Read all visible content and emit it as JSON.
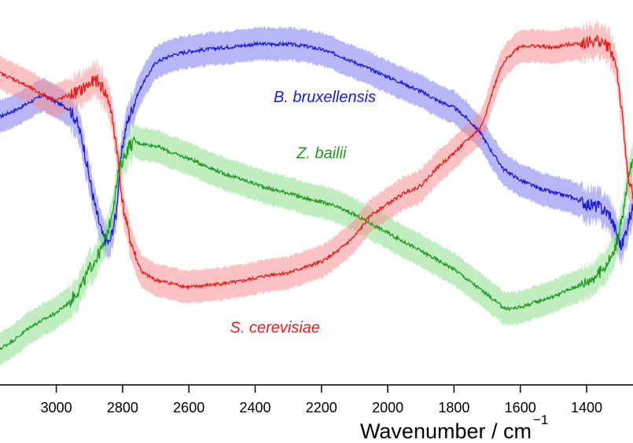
{
  "chart_data": {
    "type": "line",
    "title": "",
    "xlabel": "Wavenumber / cm",
    "xlabel_superscript": "−1",
    "ylabel": "",
    "xlim": [
      3170,
      1260
    ],
    "x_reversed": true,
    "ylim": [
      0,
      1
    ],
    "grid": false,
    "x_ticks": [
      3000,
      2800,
      2600,
      2400,
      2200,
      2000,
      1800,
      1600,
      1400
    ],
    "series": [
      {
        "name": "B. bruxellensis",
        "color": "#1a1adb",
        "band_color": "#7b7bf0",
        "label_at": [
          2190,
          0.74
        ],
        "points": [
          [
            3170,
            0.7
          ],
          [
            3120,
            0.72
          ],
          [
            3080,
            0.74
          ],
          [
            3040,
            0.76
          ],
          [
            3000,
            0.74
          ],
          [
            2960,
            0.72
          ],
          [
            2940,
            0.69
          ],
          [
            2920,
            0.63
          ],
          [
            2900,
            0.53
          ],
          [
            2880,
            0.44
          ],
          [
            2860,
            0.37
          ],
          [
            2840,
            0.35
          ],
          [
            2820,
            0.43
          ],
          [
            2810,
            0.54
          ],
          [
            2800,
            0.62
          ],
          [
            2790,
            0.67
          ],
          [
            2780,
            0.7
          ],
          [
            2760,
            0.75
          ],
          [
            2740,
            0.79
          ],
          [
            2700,
            0.85
          ],
          [
            2650,
            0.87
          ],
          [
            2600,
            0.88
          ],
          [
            2550,
            0.885
          ],
          [
            2500,
            0.89
          ],
          [
            2450,
            0.895
          ],
          [
            2400,
            0.9
          ],
          [
            2350,
            0.9
          ],
          [
            2300,
            0.9
          ],
          [
            2250,
            0.895
          ],
          [
            2200,
            0.885
          ],
          [
            2150,
            0.87
          ],
          [
            2100,
            0.85
          ],
          [
            2050,
            0.83
          ],
          [
            2000,
            0.81
          ],
          [
            1950,
            0.79
          ],
          [
            1900,
            0.77
          ],
          [
            1850,
            0.745
          ],
          [
            1800,
            0.725
          ],
          [
            1760,
            0.695
          ],
          [
            1720,
            0.655
          ],
          [
            1680,
            0.595
          ],
          [
            1650,
            0.555
          ],
          [
            1600,
            0.525
          ],
          [
            1550,
            0.505
          ],
          [
            1500,
            0.49
          ],
          [
            1450,
            0.48
          ],
          [
            1400,
            0.46
          ],
          [
            1360,
            0.45
          ],
          [
            1330,
            0.43
          ],
          [
            1310,
            0.38
          ],
          [
            1295,
            0.34
          ],
          [
            1280,
            0.39
          ],
          [
            1270,
            0.42
          ],
          [
            1260,
            0.45
          ]
        ]
      },
      {
        "name": "Z. bailii",
        "color": "#1a9a1a",
        "band_color": "#8ee08e",
        "label_at": [
          2200,
          0.585
        ],
        "points": [
          [
            3170,
            0.06
          ],
          [
            3120,
            0.09
          ],
          [
            3080,
            0.12
          ],
          [
            3040,
            0.14
          ],
          [
            3000,
            0.16
          ],
          [
            2960,
            0.19
          ],
          [
            2920,
            0.24
          ],
          [
            2900,
            0.28
          ],
          [
            2880,
            0.31
          ],
          [
            2860,
            0.34
          ],
          [
            2840,
            0.4
          ],
          [
            2820,
            0.5
          ],
          [
            2810,
            0.56
          ],
          [
            2800,
            0.58
          ],
          [
            2780,
            0.62
          ],
          [
            2760,
            0.63
          ],
          [
            2740,
            0.625
          ],
          [
            2700,
            0.62
          ],
          [
            2650,
            0.6
          ],
          [
            2600,
            0.585
          ],
          [
            2550,
            0.565
          ],
          [
            2500,
            0.545
          ],
          [
            2450,
            0.53
          ],
          [
            2400,
            0.515
          ],
          [
            2350,
            0.5
          ],
          [
            2300,
            0.49
          ],
          [
            2250,
            0.475
          ],
          [
            2200,
            0.465
          ],
          [
            2150,
            0.45
          ],
          [
            2100,
            0.43
          ],
          [
            2050,
            0.405
          ],
          [
            2000,
            0.38
          ],
          [
            1950,
            0.355
          ],
          [
            1900,
            0.33
          ],
          [
            1850,
            0.305
          ],
          [
            1800,
            0.28
          ],
          [
            1750,
            0.245
          ],
          [
            1700,
            0.21
          ],
          [
            1660,
            0.18
          ],
          [
            1640,
            0.17
          ],
          [
            1600,
            0.175
          ],
          [
            1550,
            0.19
          ],
          [
            1500,
            0.205
          ],
          [
            1450,
            0.225
          ],
          [
            1400,
            0.245
          ],
          [
            1360,
            0.27
          ],
          [
            1320,
            0.32
          ],
          [
            1300,
            0.39
          ],
          [
            1285,
            0.46
          ],
          [
            1270,
            0.55
          ],
          [
            1260,
            0.58
          ]
        ]
      },
      {
        "name": "S. cerevisiae",
        "color": "#ee1a1a",
        "band_color": "#f59090",
        "label_at": [
          2340,
          0.105
        ],
        "points": [
          [
            3170,
            0.82
          ],
          [
            3120,
            0.8
          ],
          [
            3080,
            0.78
          ],
          [
            3040,
            0.76
          ],
          [
            3000,
            0.745
          ],
          [
            2960,
            0.76
          ],
          [
            2930,
            0.77
          ],
          [
            2900,
            0.79
          ],
          [
            2880,
            0.8
          ],
          [
            2860,
            0.78
          ],
          [
            2840,
            0.74
          ],
          [
            2820,
            0.63
          ],
          [
            2810,
            0.55
          ],
          [
            2800,
            0.46
          ],
          [
            2780,
            0.37
          ],
          [
            2760,
            0.31
          ],
          [
            2740,
            0.27
          ],
          [
            2700,
            0.25
          ],
          [
            2650,
            0.24
          ],
          [
            2600,
            0.23
          ],
          [
            2550,
            0.235
          ],
          [
            2500,
            0.24
          ],
          [
            2450,
            0.245
          ],
          [
            2400,
            0.255
          ],
          [
            2350,
            0.265
          ],
          [
            2300,
            0.27
          ],
          [
            2250,
            0.285
          ],
          [
            2200,
            0.3
          ],
          [
            2150,
            0.33
          ],
          [
            2100,
            0.37
          ],
          [
            2050,
            0.43
          ],
          [
            2000,
            0.46
          ],
          [
            1950,
            0.49
          ],
          [
            1900,
            0.51
          ],
          [
            1850,
            0.56
          ],
          [
            1800,
            0.6
          ],
          [
            1760,
            0.635
          ],
          [
            1720,
            0.67
          ],
          [
            1700,
            0.72
          ],
          [
            1680,
            0.78
          ],
          [
            1660,
            0.83
          ],
          [
            1640,
            0.86
          ],
          [
            1620,
            0.88
          ],
          [
            1600,
            0.895
          ],
          [
            1550,
            0.895
          ],
          [
            1500,
            0.89
          ],
          [
            1450,
            0.9
          ],
          [
            1400,
            0.905
          ],
          [
            1360,
            0.91
          ],
          [
            1330,
            0.89
          ],
          [
            1310,
            0.84
          ],
          [
            1295,
            0.72
          ],
          [
            1280,
            0.58
          ],
          [
            1270,
            0.51
          ],
          [
            1260,
            0.49
          ]
        ]
      }
    ]
  }
}
